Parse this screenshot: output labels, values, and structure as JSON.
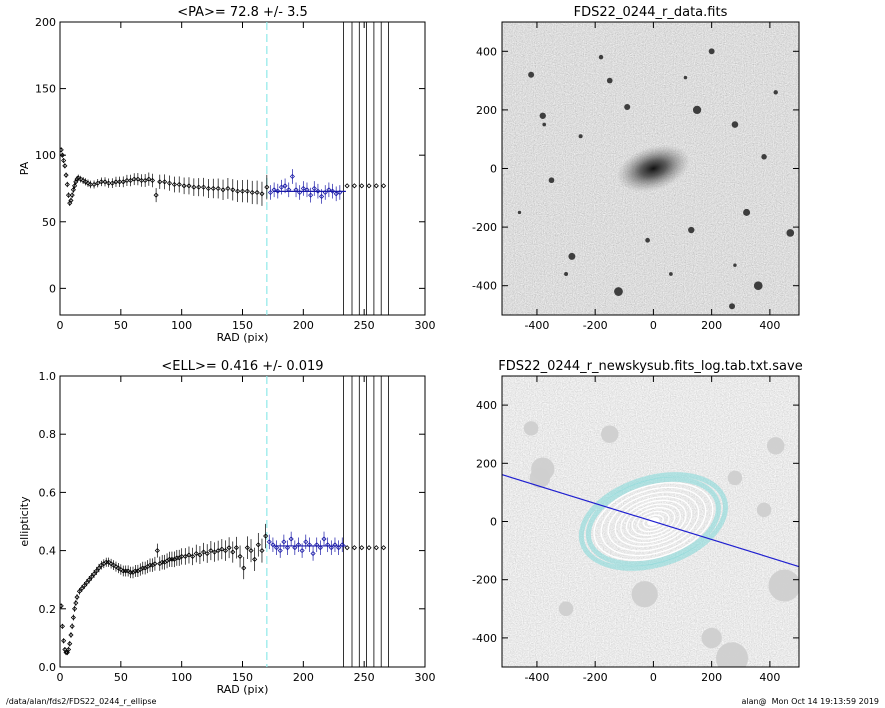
{
  "footer": {
    "left": "/data/alan/fds2/FDS22_0244_r_ellipse",
    "right": "alan@  Mon Oct 14 19:13:59 2019"
  },
  "colors": {
    "data_points": "#000000",
    "fit_points": "#1a1aa8",
    "mean_line": "#1a1aa8",
    "dashed_line": "#8fe8e8",
    "vertical_lines": "#000000",
    "image_bg": "#c8c8c8",
    "contours": "#ffffff",
    "contours_outer": "#7fd8d8",
    "major_axis_line": "#2020d0"
  },
  "chart_data": [
    {
      "id": "pa_plot",
      "type": "scatter",
      "title": "<PA>=  72.8 +/-   3.5",
      "xlabel": "RAD (pix)",
      "ylabel": "PA",
      "xlim": [
        0,
        300
      ],
      "ylim": [
        -20,
        200
      ],
      "xticks": [
        "0",
        "50",
        "100",
        "150",
        "200",
        "250",
        "300"
      ],
      "yticks": [
        "0",
        "50",
        "100",
        "150",
        "200"
      ],
      "mean": 72.8,
      "mean_range": [
        175,
        235
      ],
      "dashed_x": 170,
      "vertical_lines_x": [
        233,
        240,
        246,
        252,
        258,
        264,
        270
      ],
      "series": [
        {
          "points": [
            [
              1,
              104
            ],
            [
              2,
              100
            ],
            [
              3,
              96
            ],
            [
              4,
              92
            ],
            [
              5,
              85
            ],
            [
              6,
              78
            ],
            [
              7,
              70
            ],
            [
              8,
              64
            ],
            [
              9,
              66
            ],
            [
              10,
              70
            ],
            [
              11,
              74
            ],
            [
              12,
              77
            ],
            [
              13,
              80
            ],
            [
              14,
              82
            ],
            [
              15,
              83
            ],
            [
              17,
              82
            ],
            [
              19,
              81
            ],
            [
              21,
              80
            ],
            [
              23,
              79
            ],
            [
              25,
              78
            ],
            [
              28,
              78
            ],
            [
              31,
              79
            ],
            [
              34,
              80
            ],
            [
              37,
              80
            ],
            [
              40,
              79
            ],
            [
              43,
              79
            ],
            [
              46,
              80
            ],
            [
              49,
              80
            ],
            [
              52,
              80
            ],
            [
              55,
              81
            ],
            [
              58,
              81
            ],
            [
              61,
              82
            ],
            [
              64,
              82
            ],
            [
              67,
              81
            ],
            [
              70,
              81
            ],
            [
              73,
              82
            ],
            [
              76,
              81
            ],
            [
              79,
              70
            ],
            [
              82,
              80
            ],
            [
              86,
              80
            ],
            [
              90,
              79
            ],
            [
              94,
              78
            ],
            [
              98,
              78
            ],
            [
              102,
              77
            ],
            [
              106,
              77
            ],
            [
              110,
              76
            ],
            [
              114,
              76
            ],
            [
              118,
              76
            ],
            [
              122,
              75
            ],
            [
              126,
              75
            ],
            [
              130,
              75
            ],
            [
              134,
              74
            ],
            [
              138,
              75
            ],
            [
              142,
              74
            ],
            [
              146,
              73
            ],
            [
              150,
              73
            ],
            [
              154,
              73
            ],
            [
              158,
              72
            ],
            [
              162,
              72
            ],
            [
              166,
              71
            ],
            [
              170,
              76
            ]
          ],
          "fit_points": [
            [
              173,
              72
            ],
            [
              176,
              74
            ],
            [
              179,
              73
            ],
            [
              182,
              76
            ],
            [
              185,
              77
            ],
            [
              188,
              74
            ],
            [
              191,
              84
            ],
            [
              194,
              74
            ],
            [
              197,
              72
            ],
            [
              200,
              75
            ],
            [
              203,
              74
            ],
            [
              206,
              70
            ],
            [
              209,
              75
            ],
            [
              212,
              73
            ],
            [
              215,
              69
            ],
            [
              218,
              72
            ],
            [
              221,
              74
            ],
            [
              224,
              73
            ],
            [
              227,
              71
            ],
            [
              230,
              72
            ]
          ],
          "outer_points": [
            [
              236,
              77
            ],
            [
              242,
              77
            ],
            [
              248,
              77
            ],
            [
              254,
              77
            ],
            [
              260,
              77
            ],
            [
              266,
              77
            ]
          ]
        }
      ]
    },
    {
      "id": "ell_plot",
      "type": "scatter",
      "title": "<ELL>= 0.416 +/-  0.019",
      "xlabel": "RAD (pix)",
      "ylabel": "ellipticity",
      "xlim": [
        0,
        300
      ],
      "ylim": [
        0.0,
        1.0
      ],
      "xticks": [
        "0",
        "50",
        "100",
        "150",
        "200",
        "250",
        "300"
      ],
      "yticks": [
        "0.0",
        "0.2",
        "0.4",
        "0.6",
        "0.8",
        "1.0"
      ],
      "mean": 0.416,
      "mean_range": [
        175,
        235
      ],
      "dashed_x": 170,
      "vertical_lines_x": [
        233,
        240,
        246,
        252,
        258,
        264,
        270
      ],
      "series": [
        {
          "points": [
            [
              1,
              0.21
            ],
            [
              2,
              0.14
            ],
            [
              3,
              0.09
            ],
            [
              4,
              0.06
            ],
            [
              5,
              0.05
            ],
            [
              6,
              0.05
            ],
            [
              7,
              0.06
            ],
            [
              8,
              0.08
            ],
            [
              9,
              0.11
            ],
            [
              10,
              0.14
            ],
            [
              11,
              0.17
            ],
            [
              12,
              0.2
            ],
            [
              13,
              0.22
            ],
            [
              14,
              0.24
            ],
            [
              16,
              0.26
            ],
            [
              18,
              0.27
            ],
            [
              20,
              0.28
            ],
            [
              22,
              0.29
            ],
            [
              24,
              0.3
            ],
            [
              26,
              0.31
            ],
            [
              28,
              0.32
            ],
            [
              30,
              0.33
            ],
            [
              32,
              0.34
            ],
            [
              34,
              0.35
            ],
            [
              36,
              0.355
            ],
            [
              38,
              0.36
            ],
            [
              40,
              0.36
            ],
            [
              42,
              0.355
            ],
            [
              44,
              0.35
            ],
            [
              46,
              0.345
            ],
            [
              48,
              0.34
            ],
            [
              50,
              0.335
            ],
            [
              52,
              0.33
            ],
            [
              54,
              0.33
            ],
            [
              56,
              0.33
            ],
            [
              58,
              0.325
            ],
            [
              60,
              0.325
            ],
            [
              62,
              0.33
            ],
            [
              64,
              0.33
            ],
            [
              66,
              0.335
            ],
            [
              68,
              0.34
            ],
            [
              70,
              0.34
            ],
            [
              72,
              0.345
            ],
            [
              74,
              0.35
            ],
            [
              76,
              0.35
            ],
            [
              78,
              0.355
            ],
            [
              80,
              0.4
            ],
            [
              82,
              0.355
            ],
            [
              84,
              0.36
            ],
            [
              86,
              0.36
            ],
            [
              88,
              0.365
            ],
            [
              90,
              0.37
            ],
            [
              92,
              0.37
            ],
            [
              94,
              0.37
            ],
            [
              96,
              0.375
            ],
            [
              98,
              0.375
            ],
            [
              100,
              0.38
            ],
            [
              103,
              0.38
            ],
            [
              106,
              0.385
            ],
            [
              109,
              0.38
            ],
            [
              112,
              0.39
            ],
            [
              115,
              0.385
            ],
            [
              118,
              0.395
            ],
            [
              121,
              0.39
            ],
            [
              124,
              0.4
            ],
            [
              127,
              0.395
            ],
            [
              130,
              0.4
            ],
            [
              133,
              0.405
            ],
            [
              136,
              0.4
            ],
            [
              139,
              0.41
            ],
            [
              142,
              0.395
            ],
            [
              145,
              0.41
            ],
            [
              148,
              0.38
            ],
            [
              151,
              0.34
            ],
            [
              154,
              0.41
            ],
            [
              157,
              0.4
            ],
            [
              160,
              0.37
            ],
            [
              163,
              0.42
            ],
            [
              166,
              0.4
            ],
            [
              169,
              0.45
            ]
          ],
          "fit_points": [
            [
              172,
              0.43
            ],
            [
              175,
              0.42
            ],
            [
              178,
              0.41
            ],
            [
              181,
              0.4
            ],
            [
              184,
              0.43
            ],
            [
              187,
              0.41
            ],
            [
              190,
              0.44
            ],
            [
              193,
              0.41
            ],
            [
              196,
              0.42
            ],
            [
              199,
              0.4
            ],
            [
              202,
              0.43
            ],
            [
              205,
              0.42
            ],
            [
              208,
              0.39
            ],
            [
              211,
              0.42
            ],
            [
              214,
              0.41
            ],
            [
              217,
              0.44
            ],
            [
              220,
              0.42
            ],
            [
              223,
              0.41
            ],
            [
              226,
              0.42
            ],
            [
              229,
              0.41
            ],
            [
              232,
              0.42
            ]
          ],
          "outer_points": [
            [
              236,
              0.41
            ],
            [
              242,
              0.41
            ],
            [
              248,
              0.41
            ],
            [
              254,
              0.41
            ],
            [
              260,
              0.41
            ],
            [
              266,
              0.41
            ]
          ]
        }
      ]
    },
    {
      "id": "data_image",
      "type": "heatmap",
      "title": "FDS22_0244_r_data.fits",
      "xlim": [
        -520,
        500
      ],
      "ylim": [
        -500,
        500
      ],
      "xticks": [
        "-400",
        "-200",
        "0",
        "200",
        "400"
      ],
      "yticks": [
        "-400",
        "-200",
        "0",
        "200",
        "400"
      ],
      "galaxy": {
        "center": [
          0,
          0
        ],
        "major": 130,
        "minor": 75,
        "pa_deg": 72.8
      },
      "sources": [
        [
          -420,
          320
        ],
        [
          -380,
          180
        ],
        [
          -375,
          150
        ],
        [
          -180,
          380
        ],
        [
          -150,
          300
        ],
        [
          -90,
          210
        ],
        [
          110,
          310
        ],
        [
          150,
          200
        ],
        [
          280,
          150
        ],
        [
          380,
          40
        ],
        [
          -20,
          -245
        ],
        [
          470,
          -220
        ],
        [
          -280,
          -300
        ],
        [
          280,
          -330
        ],
        [
          270,
          -470
        ],
        [
          420,
          260
        ],
        [
          320,
          -150
        ],
        [
          -300,
          -360
        ],
        [
          130,
          -210
        ],
        [
          200,
          400
        ],
        [
          -250,
          110
        ],
        [
          -460,
          -150
        ],
        [
          360,
          -400
        ],
        [
          -120,
          -420
        ],
        [
          60,
          -360
        ],
        [
          -350,
          -40
        ]
      ]
    },
    {
      "id": "model_image",
      "type": "heatmap",
      "title": "FDS22_0244_r_newskysub.fits_log.tab.txt.save",
      "xlim": [
        -520,
        500
      ],
      "ylim": [
        -500,
        500
      ],
      "xticks": [
        "-400",
        "-200",
        "0",
        "200",
        "400"
      ],
      "yticks": [
        "-400",
        "-200",
        "0",
        "200",
        "400"
      ],
      "ellipse_center": [
        0,
        0
      ],
      "major_axis_angle": -17.2,
      "contour_radii": [
        35,
        55,
        75,
        95,
        115,
        135,
        160,
        185,
        210
      ],
      "outer_contour_radii": [
        230,
        255
      ],
      "ellipticity": 0.416,
      "masks": [
        [
          -380,
          180,
          40
        ],
        [
          -390,
          150,
          35
        ],
        [
          -30,
          -250,
          45
        ],
        [
          450,
          -220,
          55
        ],
        [
          270,
          -470,
          55
        ],
        [
          420,
          260,
          30
        ],
        [
          200,
          -400,
          35
        ],
        [
          -300,
          -300,
          25
        ],
        [
          380,
          40,
          25
        ],
        [
          -150,
          300,
          30
        ],
        [
          -420,
          320,
          25
        ],
        [
          280,
          150,
          25
        ]
      ]
    }
  ]
}
